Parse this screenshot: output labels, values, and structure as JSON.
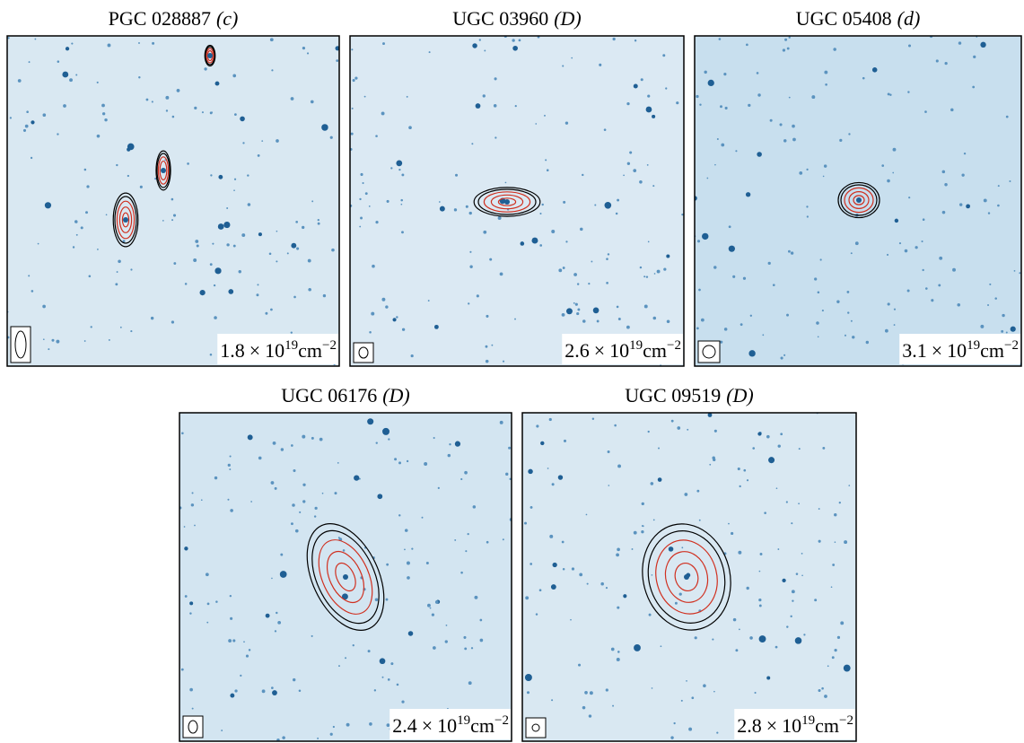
{
  "panels": [
    {
      "name": "PGC 028887",
      "class": "(c)",
      "density": {
        "coefficient": "1.8",
        "operator": "×",
        "base": "10",
        "exponent": "19",
        "unit": "cm",
        "unit_exponent": "−2"
      }
    },
    {
      "name": "UGC 03960",
      "class": "(D)",
      "density": {
        "coefficient": "2.6",
        "operator": "×",
        "base": "10",
        "exponent": "19",
        "unit": "cm",
        "unit_exponent": "−2"
      }
    },
    {
      "name": "UGC 05408",
      "class": "(d)",
      "density": {
        "coefficient": "3.1",
        "operator": "×",
        "base": "10",
        "exponent": "19",
        "unit": "cm",
        "unit_exponent": "−2"
      }
    },
    {
      "name": "UGC 06176",
      "class": "(D)",
      "density": {
        "coefficient": "2.4",
        "operator": "×",
        "base": "10",
        "exponent": "19",
        "unit": "cm",
        "unit_exponent": "−2"
      }
    },
    {
      "name": "UGC 09519",
      "class": "(D)",
      "density": {
        "coefficient": "2.8",
        "operator": "×",
        "base": "10",
        "exponent": "19",
        "unit": "cm",
        "unit_exponent": "−2"
      }
    }
  ]
}
